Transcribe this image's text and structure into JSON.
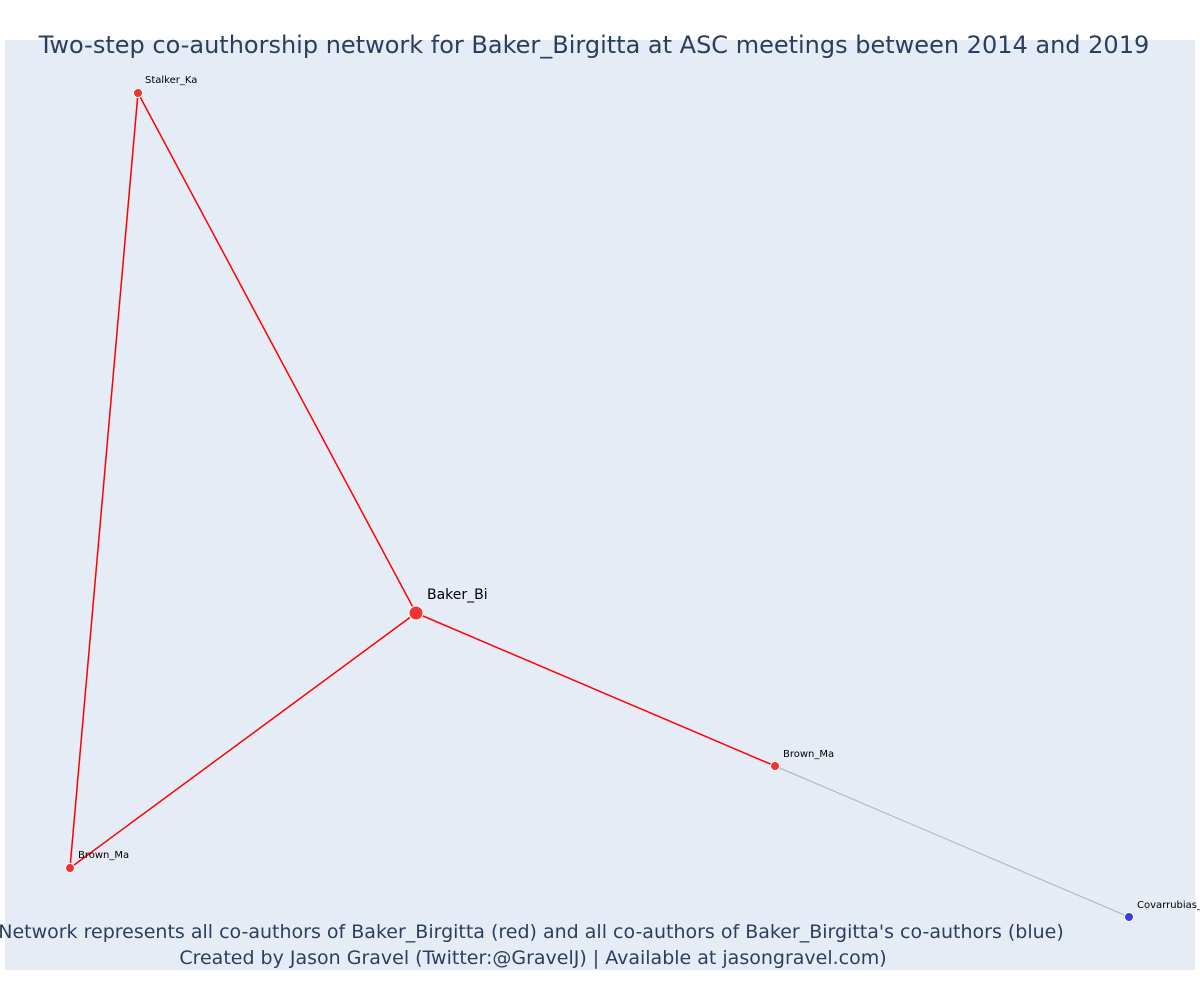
{
  "title": "Two-step co-authorship network for Baker_Birgitta at ASC meetings between 2014 and 2019",
  "nodes": [
    {
      "label": "Baker_Bi"
    },
    {
      "label": "Stalker_Ka"
    },
    {
      "label": "Brown_Ma"
    },
    {
      "label": "Brown_Ma"
    },
    {
      "label": "Covarrubias_"
    }
  ],
  "footer": [
    "Network represents all co-authors of Baker_Birgitta (red) and all co-authors of Baker_Birgitta's co-authors (blue)",
    "Created by Jason Gravel (Twitter:@GravelJ) | Available at jasongravel.com)"
  ]
}
